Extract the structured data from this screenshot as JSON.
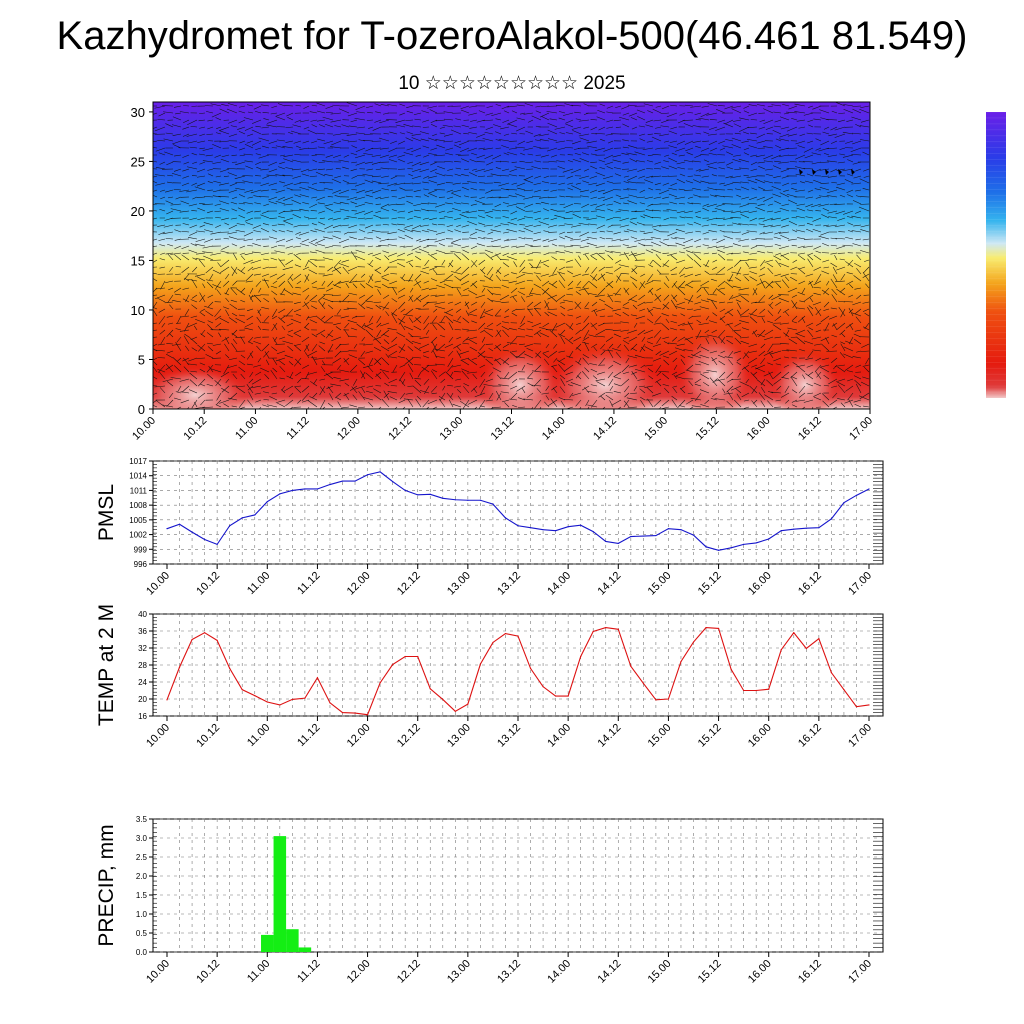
{
  "title": "Kazhydromet for T-ozeroAlakol-500(46.461 81.549)",
  "subtitle": "10 ☆☆☆☆☆☆☆☆☆ 2025",
  "time_ticks": [
    "10.00",
    "10.12",
    "11.00",
    "11.12",
    "12.00",
    "12.12",
    "13.00",
    "13.12",
    "14.00",
    "14.12",
    "15.00",
    "15.12",
    "16.00",
    "16.12",
    "17.00"
  ],
  "chart_data": [
    {
      "type": "heatmap",
      "panel": "cross-section",
      "y_ticks": [
        "0",
        "5",
        "10",
        "15",
        "20",
        "25",
        "30"
      ],
      "ylim": [
        0,
        31
      ],
      "colorscale": [
        "#6a1fe8",
        "#2a3ce8",
        "#1e6fe8",
        "#35b4ee",
        "#cfe8f4",
        "#f8ec70",
        "#f4a41c",
        "#ef5010",
        "#e51b0f",
        "#d91a17",
        "#f2c8c8"
      ],
      "overlay": "wind arrows",
      "colorbar": true
    },
    {
      "type": "line",
      "panel": "pmsl",
      "ylabel": "PMSL",
      "y_ticks": [
        "1017",
        "1014",
        "1011",
        "1008",
        "1005",
        "1002",
        "999",
        "996"
      ],
      "ylim": [
        996,
        1017
      ],
      "color": "#1515cc",
      "x": [
        0,
        1,
        2,
        3,
        4,
        5,
        6,
        7,
        8,
        9,
        10,
        11,
        12,
        13,
        14,
        15,
        16,
        17,
        18,
        19,
        20,
        21,
        22,
        23,
        24,
        25,
        26,
        27,
        28,
        29,
        30,
        31,
        32,
        33,
        34,
        35,
        36,
        37,
        38,
        39,
        40,
        41,
        42,
        43,
        44,
        45,
        46,
        47,
        48,
        49,
        50,
        51,
        52,
        53,
        54,
        55,
        56
      ],
      "values": [
        1003.2,
        1004.1,
        1002.5,
        1001.0,
        1000.0,
        1003.8,
        1005.4,
        1006.0,
        1008.7,
        1010.3,
        1011.0,
        1011.3,
        1011.3,
        1012.2,
        1012.9,
        1012.9,
        1014.2,
        1014.8,
        1012.8,
        1011.0,
        1010.1,
        1010.2,
        1009.4,
        1009.1,
        1009.0,
        1009.0,
        1008.2,
        1005.4,
        1003.8,
        1003.4,
        1003.0,
        1002.8,
        1003.6,
        1003.9,
        1002.6,
        1000.6,
        1000.2,
        1001.6,
        1001.7,
        1001.8,
        1003.2,
        1003.0,
        1001.9,
        999.5,
        998.8,
        999.3,
        1000.0,
        1000.3,
        1001.1,
        1002.8,
        1003.1,
        1003.3,
        1003.4,
        1005.2,
        1008.5,
        1010.0,
        1011.3
      ]
    },
    {
      "type": "line",
      "panel": "temp",
      "ylabel": "TEMP at 2 M",
      "y_ticks": [
        "40",
        "36",
        "32",
        "28",
        "24",
        "20",
        "16"
      ],
      "ylim": [
        16,
        40
      ],
      "color": "#dd1111",
      "x": [
        0,
        1,
        2,
        3,
        4,
        5,
        6,
        7,
        8,
        9,
        10,
        11,
        12,
        13,
        14,
        15,
        16,
        17,
        18,
        19,
        20,
        21,
        22,
        23,
        24,
        25,
        26,
        27,
        28,
        29,
        30,
        31,
        32,
        33,
        34,
        35,
        36,
        37,
        38,
        39,
        40,
        41,
        42,
        43,
        44,
        45,
        46,
        47,
        48,
        49,
        50,
        51,
        52,
        53,
        54,
        55,
        56
      ],
      "values": [
        19.8,
        27.5,
        34.0,
        35.6,
        33.8,
        27.2,
        22.2,
        20.8,
        19.3,
        18.6,
        19.9,
        20.2,
        25.0,
        19.1,
        16.8,
        16.7,
        16.3,
        23.8,
        28.1,
        30.0,
        30.0,
        22.4,
        19.9,
        17.1,
        18.8,
        28.2,
        33.3,
        35.4,
        34.8,
        27.2,
        22.9,
        20.7,
        20.7,
        30.0,
        35.9,
        36.8,
        36.4,
        27.7,
        23.7,
        19.8,
        20.0,
        28.8,
        33.4,
        36.8,
        36.6,
        27.0,
        22.0,
        22.0,
        22.3,
        31.6,
        35.6,
        31.9,
        34.2,
        26.2,
        22.2,
        18.2,
        18.6
      ]
    },
    {
      "type": "bar",
      "panel": "precip",
      "ylabel": "PRECIP, mm",
      "y_ticks": [
        "3.5",
        "3.0",
        "2.5",
        "2.0",
        "1.5",
        "1.0",
        "0.5",
        "0.0"
      ],
      "ylim": [
        0,
        3.5
      ],
      "color": "#14ee14",
      "x": [
        8,
        9,
        10,
        11
      ],
      "values": [
        0.45,
        3.05,
        0.6,
        0.12
      ]
    }
  ]
}
